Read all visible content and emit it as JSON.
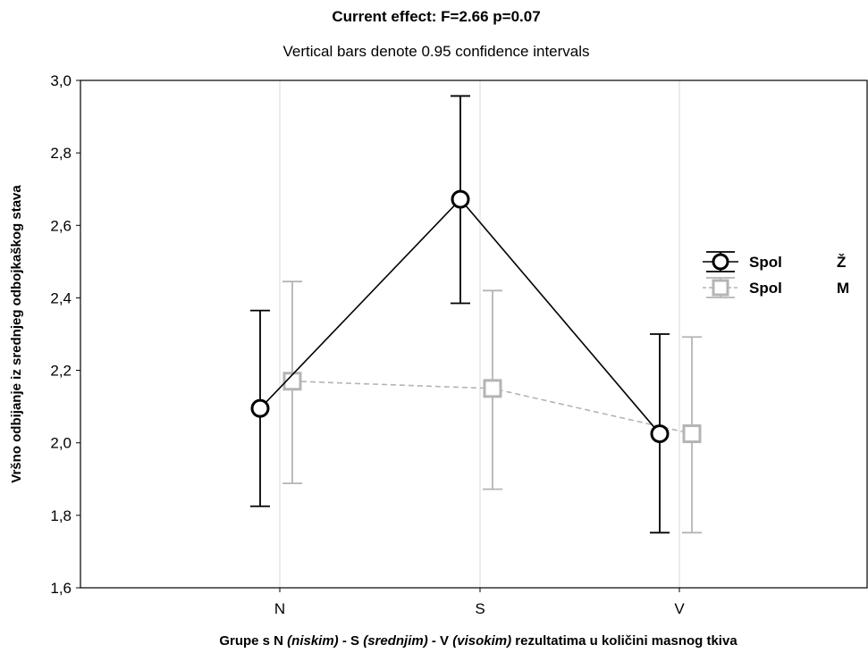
{
  "chart_data": {
    "type": "line",
    "title": "Current effect: F=2.66  p=0.07",
    "subtitle": "Vertical bars denote 0.95 confidence intervals",
    "ylabel": "Vršno odbijanje iz srednjeg odbojkaškog stava",
    "xlabel_parts": [
      {
        "text": "Grupe s N ",
        "italic": false
      },
      {
        "text": "(niskim)",
        "italic": true
      },
      {
        "text": " - S ",
        "italic": false
      },
      {
        "text": "(srednjim)",
        "italic": true
      },
      {
        "text": " - V ",
        "italic": false
      },
      {
        "text": "(visokim)",
        "italic": true
      },
      {
        "text": " rezultatima u količini masnog tkiva",
        "italic": false
      }
    ],
    "categories": [
      "N",
      "S",
      "V"
    ],
    "ylim": [
      1.6,
      3.0
    ],
    "yticks": [
      1.6,
      1.8,
      2.0,
      2.2,
      2.4,
      2.6,
      2.8,
      3.0
    ],
    "ytick_labels": [
      "1,6",
      "1,8",
      "2,0",
      "2,2",
      "2,4",
      "2,6",
      "2,8",
      "3,0"
    ],
    "grid": true,
    "legend_position": "right",
    "series": [
      {
        "name": "Spol",
        "level": "Ž",
        "marker": "circle",
        "color": "#000000",
        "dashed": false,
        "values": [
          2.095,
          2.672,
          2.025
        ],
        "ci_low": [
          1.825,
          2.385,
          1.752
        ],
        "ci_high": [
          2.365,
          2.957,
          2.3
        ]
      },
      {
        "name": "Spol",
        "level": "M",
        "marker": "square",
        "color": "#b4b4b4",
        "dashed": true,
        "values": [
          2.17,
          2.15,
          2.025
        ],
        "ci_low": [
          1.888,
          1.872,
          1.752
        ],
        "ci_high": [
          2.445,
          2.42,
          2.292
        ]
      }
    ]
  }
}
